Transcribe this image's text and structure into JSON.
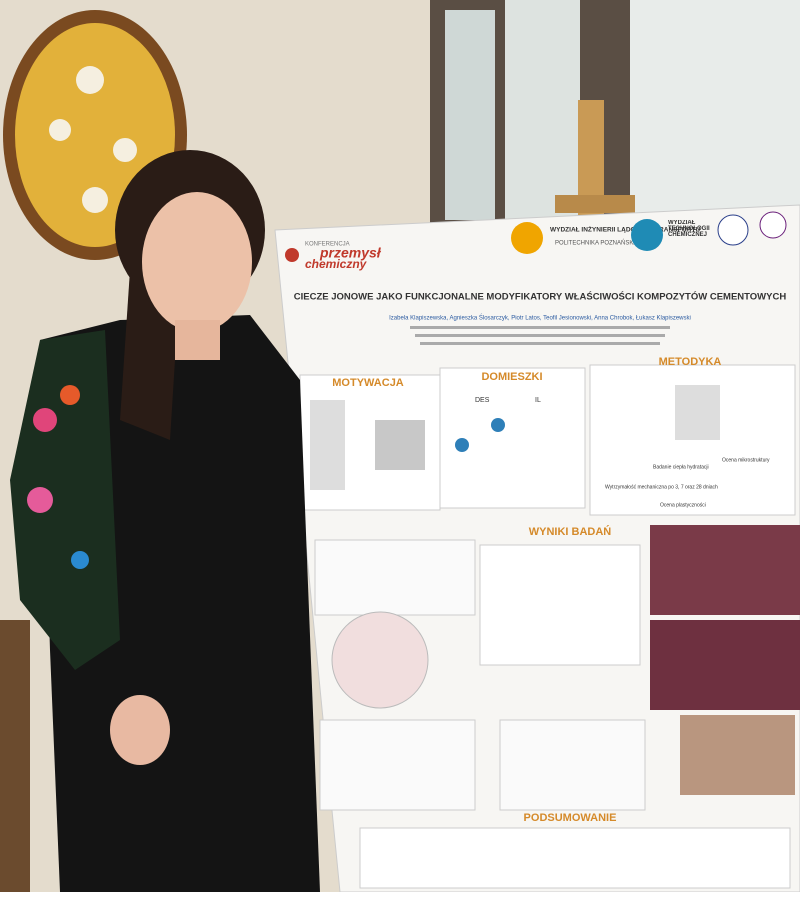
{
  "poster": {
    "logo": {
      "small": "KONFERENCJA",
      "line1": "przemysł",
      "line2": "chemiczny"
    },
    "faculty1": "WYDZIAŁ INŻYNIERII LĄDOWEJ I TRANSPORTU",
    "university": "POLITECHNIKA POZNAŃSKA",
    "faculty2": "WYDZIAŁ TECHNOLOGII CHEMICZNEJ",
    "title": "CIECZE JONOWE JAKO FUNKCJONALNE MODYFIKATORY WŁAŚCIWOŚCI KOMPOZYTÓW CEMENTOWYCH",
    "authors": "Izabela Klapiszewska, Agnieszka Ślosarczyk, Piotr Latos, Teofil Jesionowski, Anna Chrobok, Łukasz Klapiszewski",
    "sections": [
      "MOTYWACJA",
      "DOMIESZKI",
      "METODYKA",
      "WYNIKI BADAŃ",
      "PODSUMOWANIE"
    ],
    "admixtures": [
      "DES",
      "IL"
    ],
    "methods": [
      "Badanie ciepła hydratacji",
      "Ocena mikrostruktury",
      "Wytrzymałość mechaniczna po 3, 7 oraz 28 dniach",
      "Ocena plastyczności"
    ]
  }
}
